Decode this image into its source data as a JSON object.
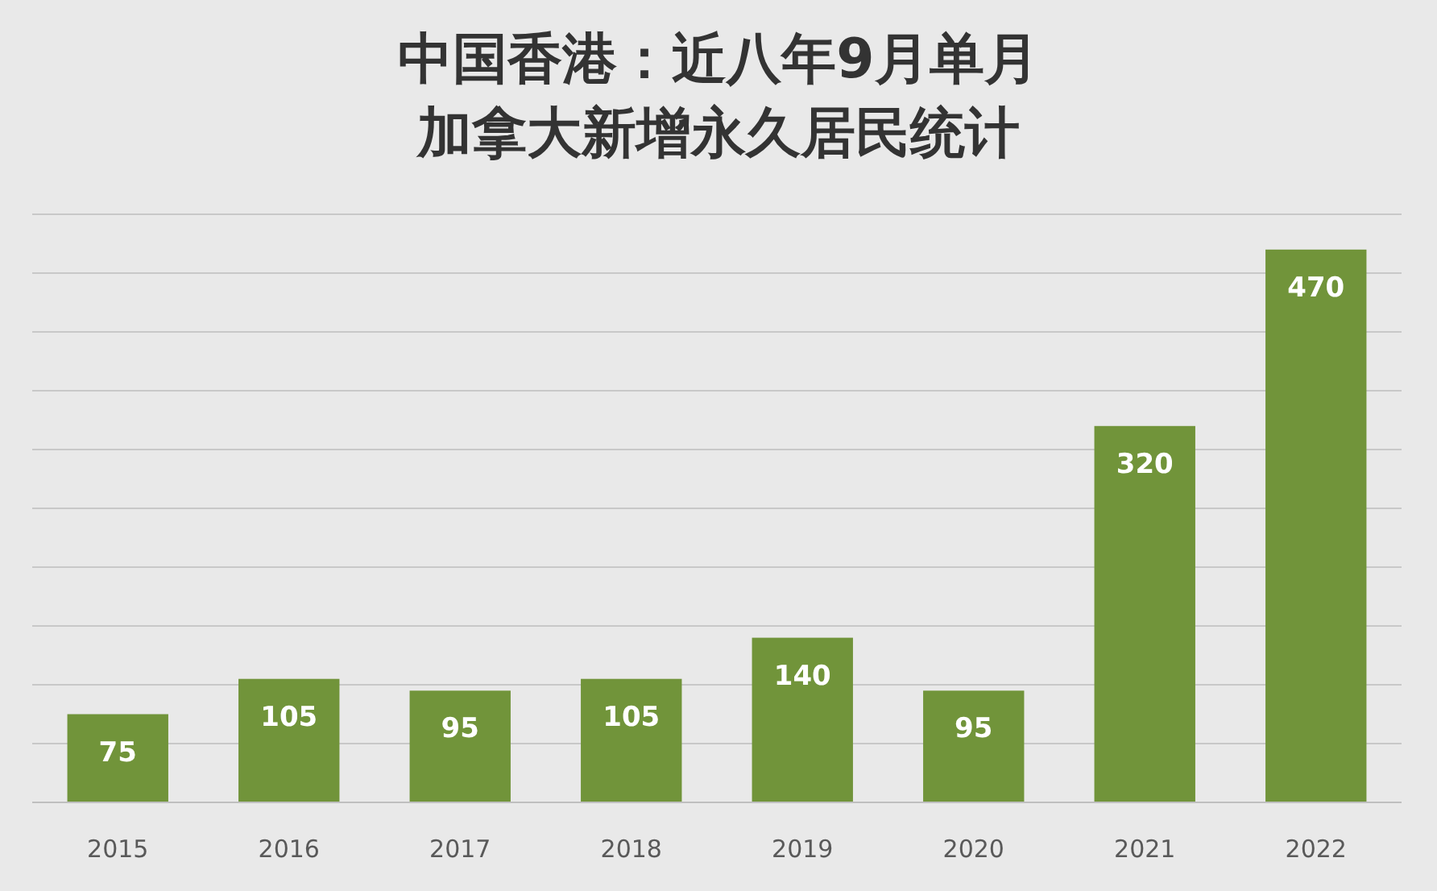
{
  "chart_data": {
    "type": "bar",
    "title": "中国香港：近八年9月单月加拿大新增永久居民统计",
    "categories": [
      "2015",
      "2016",
      "2017",
      "2018",
      "2019",
      "2020",
      "2021",
      "2022"
    ],
    "values": [
      75,
      105,
      95,
      105,
      140,
      95,
      320,
      470
    ],
    "color": "#71943a",
    "data_labels": true,
    "ylim": [
      0,
      500
    ],
    "yticks": [
      {
        "value": 0,
        "label": null
      },
      {
        "value": 50,
        "label": null
      },
      {
        "value": 100,
        "label": null
      },
      {
        "value": 150,
        "label": null
      },
      {
        "value": 200,
        "label": null
      },
      {
        "value": 250,
        "label": null
      },
      {
        "value": 300,
        "label": null
      },
      {
        "value": 350,
        "label": null
      },
      {
        "value": 400,
        "label": null
      },
      {
        "value": 450,
        "label": null
      },
      {
        "value": 500,
        "label": null
      }
    ],
    "grid": "y",
    "tick_labels": "x"
  }
}
